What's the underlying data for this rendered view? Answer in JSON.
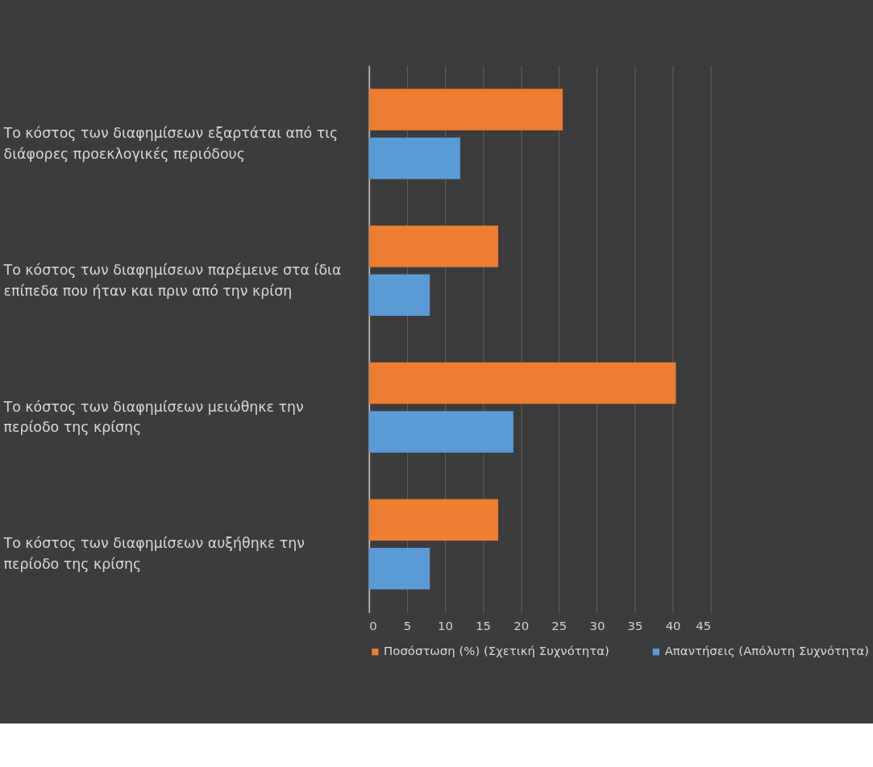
{
  "chart_data": {
    "type": "bar",
    "orientation": "horizontal",
    "categories": [
      "Το κόστος των διαφημίσεων εξαρτάται από τις διάφορες προεκλογικές περιόδους",
      "Το κόστος των διαφημίσεων παρέμεινε στα ίδια επίπεδα που ήταν και πριν από την κρίση",
      "Το κόστος των διαφημίσεων μειώθηκε την περίοδο της κρίσης",
      "Το κόστος των διαφημίσεων αυξήθηκε την περίοδο της κρίσης"
    ],
    "series": [
      {
        "name": "Ποσόστωση (%) (Σχετική Συχνότητα)",
        "color": "#ed7d31",
        "values": [
          25.5,
          17,
          40.4,
          17
        ]
      },
      {
        "name": "Απαντήσεις (Απόλυτη Συχνότητα)",
        "color": "#5b9bd5",
        "values": [
          12,
          8,
          19,
          8
        ]
      }
    ],
    "xlim": [
      0,
      45
    ],
    "xticks": [
      0,
      5,
      10,
      15,
      20,
      25,
      30,
      35,
      40,
      45
    ],
    "grid": "x",
    "legend": "bottom"
  }
}
